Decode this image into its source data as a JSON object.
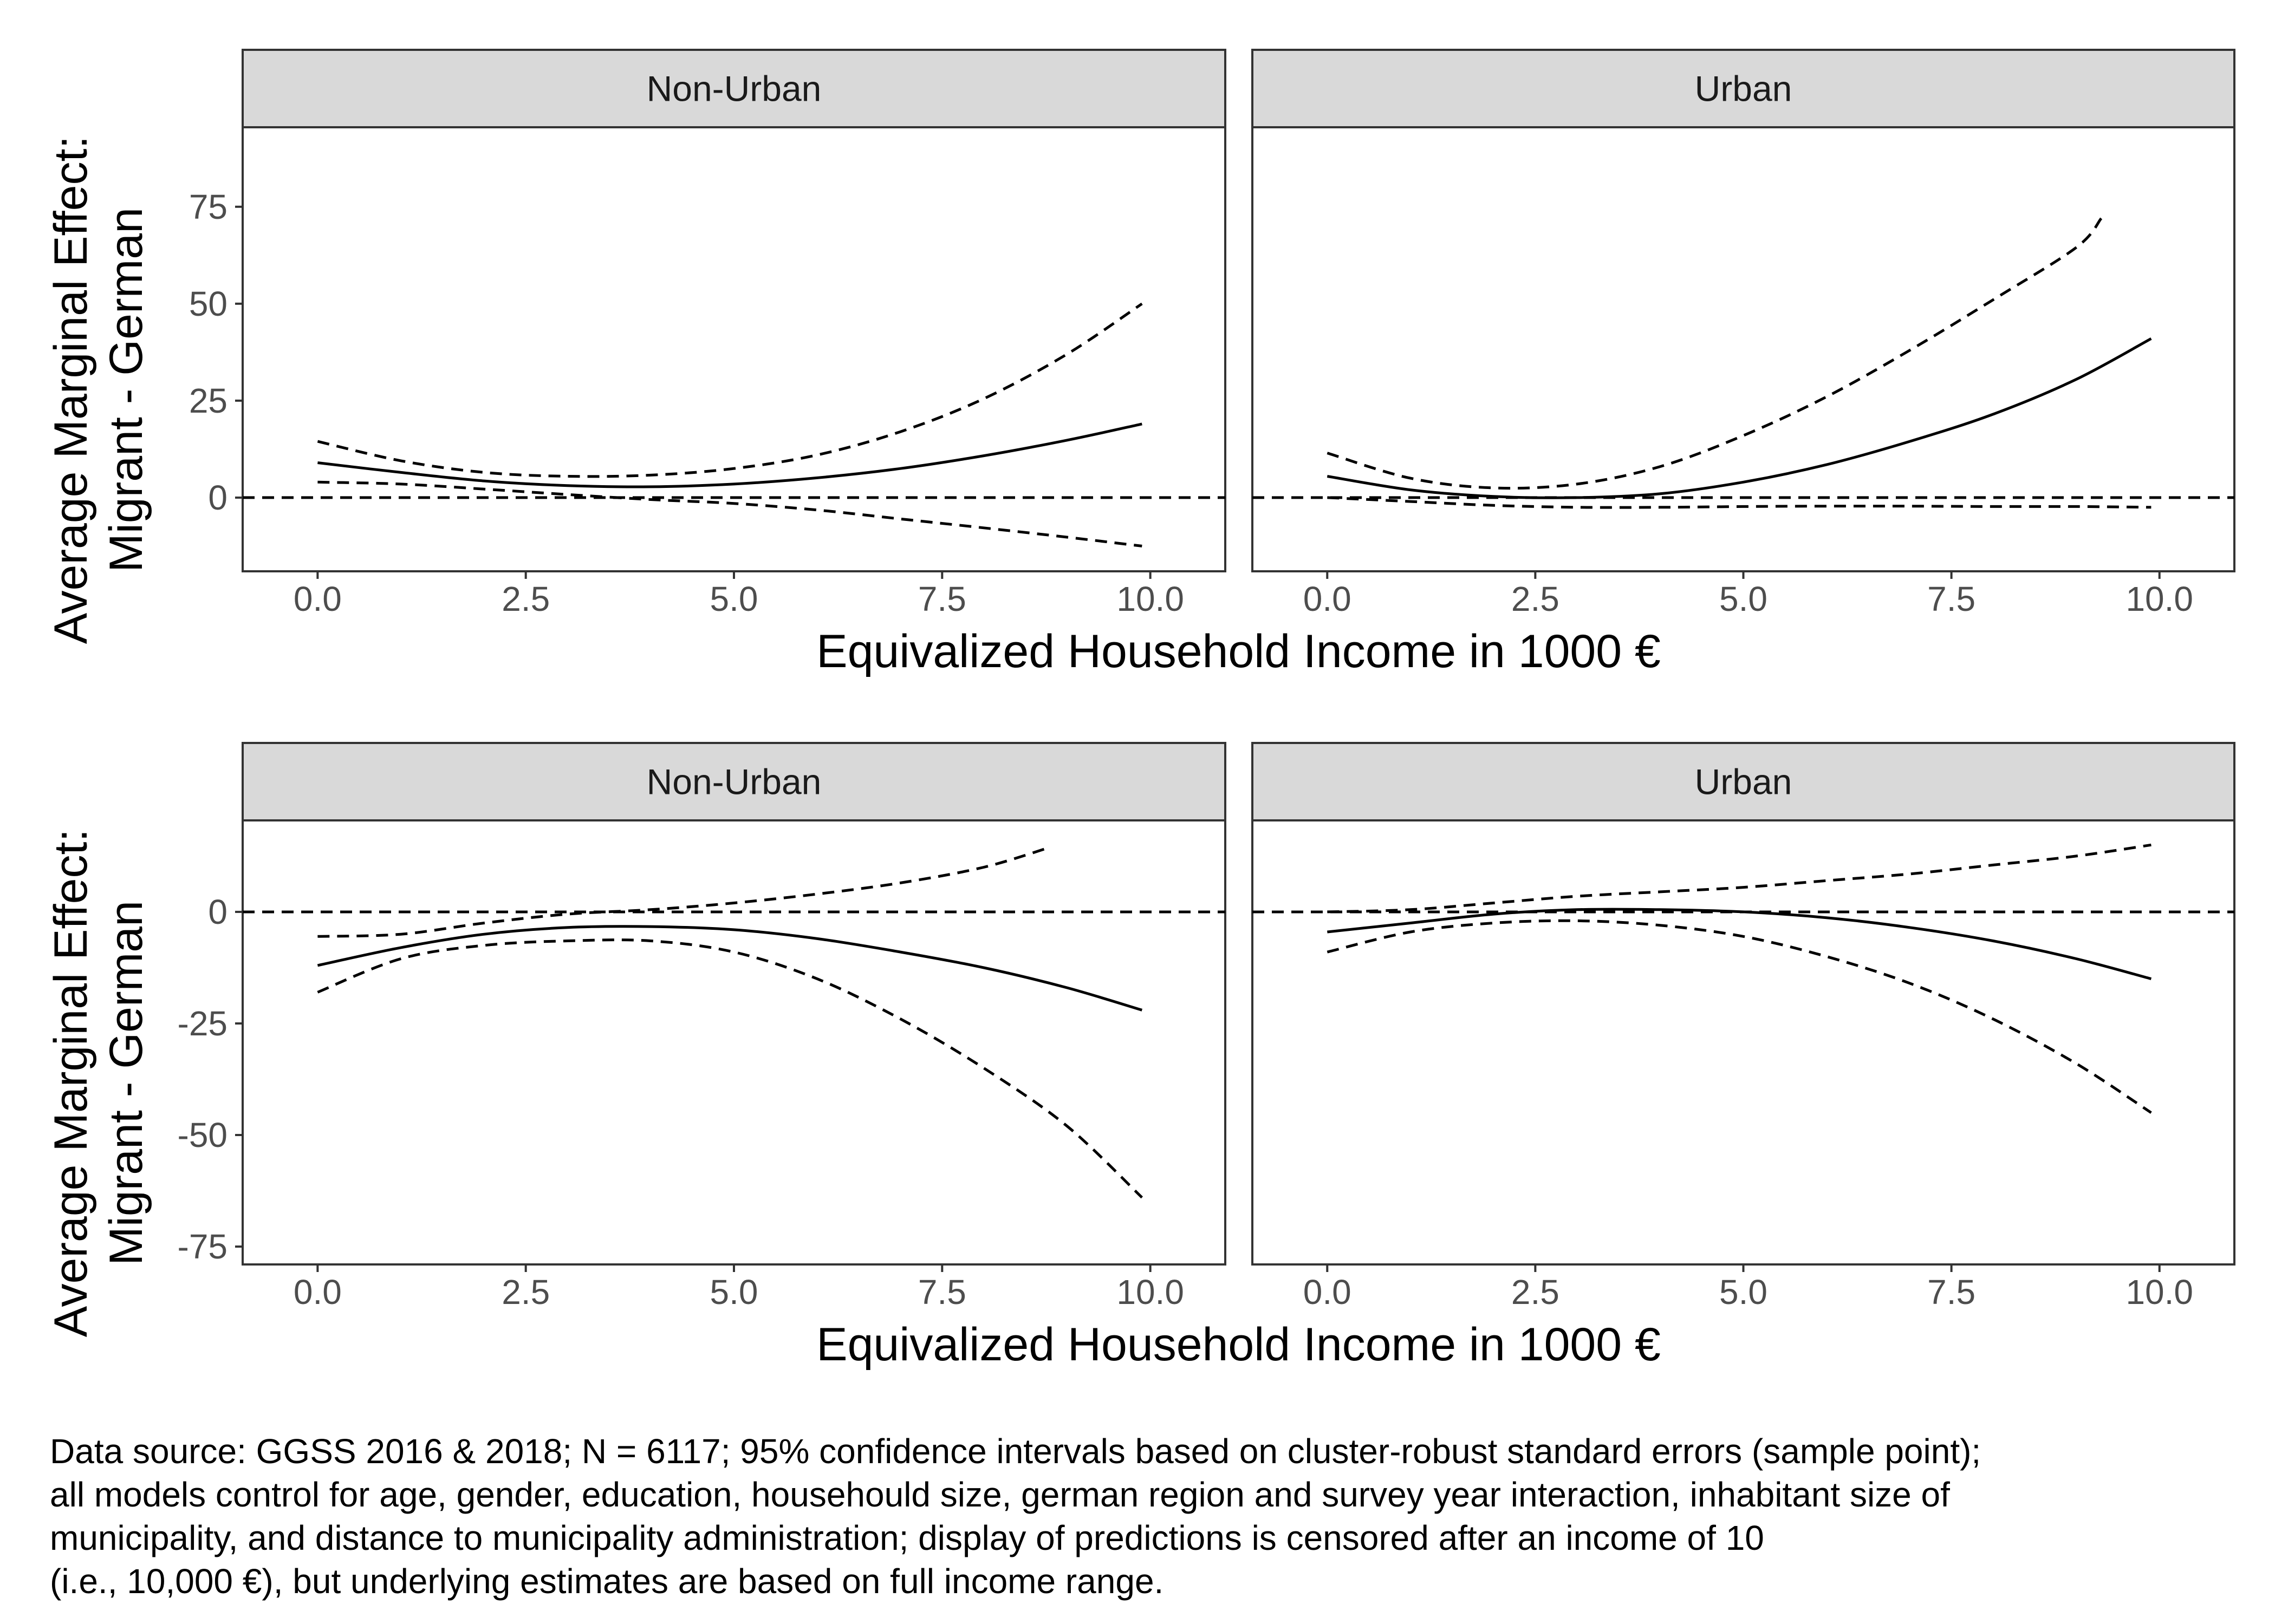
{
  "chart_data": [
    {
      "type": "line",
      "panels": [
        {
          "strip": "Non-Urban",
          "series": [
            {
              "style": "solid",
              "x": [
                0,
                1,
                2,
                3,
                4,
                5,
                6,
                7,
                8,
                9,
                9.9
              ],
              "y": [
                9,
                6.5,
                4.3,
                3.1,
                2.8,
                3.5,
                5.1,
                7.5,
                10.8,
                14.8,
                19
              ]
            },
            {
              "style": "dashed",
              "x": [
                0,
                1,
                2,
                3,
                4,
                5,
                6,
                7,
                8,
                9,
                9.9
              ],
              "y": [
                14.5,
                9.5,
                6.5,
                5.5,
                5.8,
                7.5,
                11,
                17,
                25.5,
                37,
                50
              ]
            },
            {
              "style": "dashed",
              "x": [
                0,
                1,
                2,
                3,
                4,
                5,
                6,
                7,
                8,
                9,
                9.9
              ],
              "y": [
                4,
                3.5,
                2.2,
                0.8,
                -0.5,
                -1.5,
                -3.2,
                -5.5,
                -7.8,
                -10.2,
                -12.5
              ]
            }
          ]
        },
        {
          "strip": "Urban",
          "series": [
            {
              "style": "solid",
              "x": [
                0,
                1,
                2,
                3,
                4,
                5,
                6,
                7,
                8,
                9,
                9.9
              ],
              "y": [
                5.5,
                2,
                0.3,
                0,
                1,
                4,
                8.5,
                14.5,
                21.5,
                30.5,
                41
              ]
            },
            {
              "style": "dashed",
              "x": [
                0,
                1,
                2,
                3,
                4,
                5,
                6,
                7,
                8,
                9,
                9.3
              ],
              "y": [
                11.5,
                5,
                2.5,
                3.5,
                8,
                16,
                26,
                38,
                51,
                64.5,
                72
              ]
            },
            {
              "style": "dashed",
              "x": [
                0,
                1,
                2,
                3,
                4,
                5,
                6,
                7,
                8,
                9,
                9.9
              ],
              "y": [
                0,
                -1,
                -2,
                -2.5,
                -2.5,
                -2.3,
                -2.2,
                -2.2,
                -2.3,
                -2.3,
                -2.5
              ]
            }
          ]
        }
      ],
      "reference_line": 0,
      "xlabel": "Equivalized Household Income in 1000 €",
      "ylabel_lines": [
        "Average Marginal Effect:",
        "Migrant - German"
      ],
      "xticks": [
        "0.0",
        "2.5",
        "5.0",
        "7.5",
        "10.0"
      ],
      "x_tick_values": [
        0,
        2.5,
        5,
        7.5,
        10
      ],
      "yticks": [
        "0",
        "25",
        "50",
        "75"
      ],
      "y_tick_values": [
        0,
        25,
        50,
        75
      ],
      "xlim": [
        -0.9,
        10.9
      ],
      "ylim": [
        -19,
        95.5
      ],
      "grid": false
    },
    {
      "type": "line",
      "panels": [
        {
          "strip": "Non-Urban",
          "series": [
            {
              "style": "solid",
              "x": [
                0,
                1,
                2,
                3,
                4,
                5,
                6,
                7,
                8,
                9,
                9.9
              ],
              "y": [
                -12,
                -8,
                -5,
                -3.5,
                -3.3,
                -4,
                -6,
                -9,
                -12.5,
                -17,
                -22
              ]
            },
            {
              "style": "dashed",
              "x": [
                0,
                1,
                2,
                3,
                4,
                5,
                6,
                7,
                8,
                9,
                9.9
              ],
              "y": [
                -18,
                -10.5,
                -7.5,
                -6.5,
                -6.5,
                -9,
                -15,
                -24,
                -35,
                -48,
                -64
              ]
            },
            {
              "style": "dashed",
              "x": [
                0,
                1,
                2,
                3,
                4,
                5,
                6,
                7,
                8,
                8.8
              ],
              "y": [
                -5.5,
                -5,
                -2.5,
                -0.5,
                0.5,
                2,
                4,
                6.5,
                10,
                14.5
              ]
            }
          ]
        },
        {
          "strip": "Urban",
          "series": [
            {
              "style": "solid",
              "x": [
                0,
                1,
                2,
                3,
                4,
                5,
                6,
                7,
                8,
                9,
                9.9
              ],
              "y": [
                -4.5,
                -2.5,
                -0.5,
                0.5,
                0.5,
                0,
                -1.3,
                -3.5,
                -6.5,
                -10.5,
                -15
              ]
            },
            {
              "style": "dashed",
              "x": [
                0,
                1,
                2,
                3,
                4,
                5,
                6,
                7,
                8,
                9,
                9.9
              ],
              "y": [
                -9,
                -4.5,
                -2.5,
                -2,
                -3,
                -5.5,
                -10,
                -16,
                -24,
                -34,
                -45
              ]
            },
            {
              "style": "dashed",
              "x": [
                0,
                1,
                2,
                3,
                4,
                5,
                6,
                7,
                8,
                9,
                9.9
              ],
              "y": [
                0,
                0.5,
                2,
                3.5,
                4.5,
                5.5,
                7,
                8.5,
                10.5,
                12.5,
                15
              ]
            }
          ]
        }
      ],
      "reference_line": 0,
      "xlabel": "Equivalized Household Income in 1000 €",
      "ylabel_lines": [
        "Average Marginal Effect:",
        "Migrant - German"
      ],
      "xticks": [
        "0.0",
        "2.5",
        "5.0",
        "7.5",
        "10.0"
      ],
      "x_tick_values": [
        0,
        2.5,
        5,
        7.5,
        10
      ],
      "yticks": [
        "0",
        "-25",
        "-50",
        "-75"
      ],
      "y_tick_values": [
        0,
        -25,
        -50,
        -75
      ],
      "xlim": [
        -0.9,
        10.9
      ],
      "ylim": [
        -79,
        20.5
      ],
      "grid": false
    }
  ],
  "caption": {
    "lines": [
      "Data source: GGSS 2016 & 2018; N = 6117; 95% confidence intervals based on cluster-robust standard errors (sample point);",
      "all models control for age, gender, education, househould size, german region and survey year interaction, inhabitant size of",
      "municipality, and distance to municipality administration; display of predictions is censored after an income of 10",
      "(i.e., 10,000 €), but underlying estimates are based on full income range."
    ]
  }
}
